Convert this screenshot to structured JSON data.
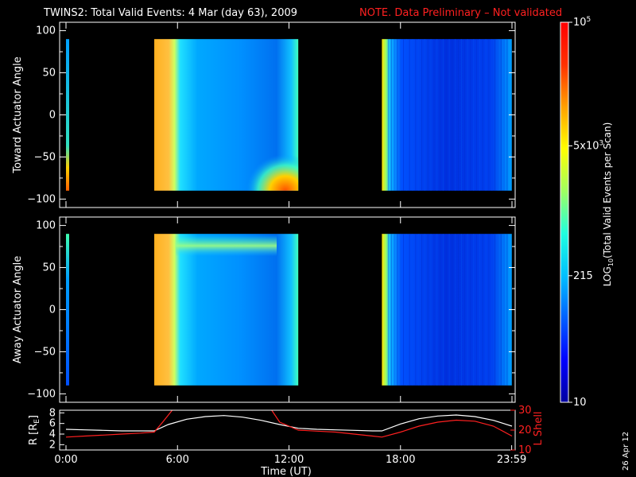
{
  "header": {
    "title": "TWINS2: Total Valid Events:  4 Mar (day  63), 2009",
    "note": "NOTE. Data Preliminary – Not validated",
    "note_color": "#ff2020"
  },
  "footer": {
    "date_stamp": "26 Apr 12"
  },
  "chart_data": [
    {
      "type": "heatmap",
      "id": "toward",
      "ylabel": "Toward Actuator Angle",
      "ylim": [
        -110,
        110
      ],
      "yticks": [
        100,
        50,
        0,
        -50,
        -100
      ],
      "yticklabels": [
        "100",
        "50",
        "0",
        "−50",
        "−100"
      ],
      "xlim_hours": [
        0,
        24
      ],
      "data_blocks": [
        {
          "start_hour": 0.1,
          "end_hour": 0.3,
          "angle_range": [
            -90,
            90
          ],
          "log_level": 0.45
        },
        {
          "start_hour": 4.75,
          "end_hour": 12.5,
          "angle_range": [
            -90,
            90
          ],
          "log_level": 0.55
        },
        {
          "start_hour": 17.0,
          "end_hour": 23.99,
          "angle_range": [
            -90,
            90
          ],
          "log_level": 0.35
        }
      ]
    },
    {
      "type": "heatmap",
      "id": "away",
      "ylabel": "Away Actuator Angle",
      "ylim": [
        -110,
        110
      ],
      "yticks": [
        100,
        50,
        0,
        -50,
        -100
      ],
      "yticklabels": [
        "100",
        "50",
        "0",
        "−50",
        "−100"
      ],
      "xlim_hours": [
        0,
        24
      ],
      "data_blocks": [
        {
          "start_hour": 0.1,
          "end_hour": 0.3,
          "angle_range": [
            -90,
            90
          ],
          "log_level": 0.5
        },
        {
          "start_hour": 4.75,
          "end_hour": 12.5,
          "angle_range": [
            -90,
            90
          ],
          "log_level": 0.5
        },
        {
          "start_hour": 17.0,
          "end_hour": 23.99,
          "angle_range": [
            -90,
            90
          ],
          "log_level": 0.3
        }
      ]
    },
    {
      "type": "line",
      "id": "orbit",
      "ylabel": "R [R",
      "ylabel_sub": "E",
      "ylabel_end": "]",
      "ylim": [
        1,
        8.5
      ],
      "yticks": [
        8,
        6,
        4,
        2
      ],
      "yticklabels": [
        "8",
        "6",
        "4",
        "2"
      ],
      "y2label": "L Shell",
      "y2lim": [
        10,
        30
      ],
      "y2ticks": [
        30,
        20,
        10
      ],
      "y2ticklabels": [
        "30",
        "20",
        "10"
      ],
      "xlabel": "Time (UT)",
      "xticks_hours": [
        0,
        6,
        12,
        18,
        23.983
      ],
      "xticklabels": [
        "0:00",
        "6:00",
        "12:00",
        "18:00",
        "23:59"
      ],
      "series": [
        {
          "color": "#ffffff",
          "axis": "left",
          "x": [
            0,
            1,
            2,
            3,
            4,
            4.75,
            5.5,
            6.5,
            7.5,
            8.5,
            9.5,
            10.5,
            11.5,
            12.5,
            13.5,
            14.5,
            15.5,
            16.5,
            17.0,
            18,
            19,
            20,
            21,
            22,
            23,
            24
          ],
          "y": [
            4.9,
            4.8,
            4.7,
            4.6,
            4.6,
            4.6,
            5.8,
            6.8,
            7.3,
            7.5,
            7.2,
            6.6,
            5.8,
            5.1,
            4.9,
            4.8,
            4.7,
            4.6,
            4.6,
            5.9,
            6.9,
            7.4,
            7.6,
            7.3,
            6.6,
            5.5
          ]
        },
        {
          "color": "#ff2020",
          "axis": "right",
          "x": [
            0,
            1,
            2,
            3,
            4,
            4.75,
            5.2,
            5.8,
            11.0,
            11.5,
            12.5,
            13.5,
            14.5,
            15.5,
            16.5,
            17.0,
            18,
            19,
            20,
            21,
            22,
            23,
            24
          ],
          "y": [
            16.5,
            17,
            17.5,
            18,
            18.5,
            19,
            24,
            31,
            31,
            24,
            20,
            19.5,
            19,
            18,
            17,
            16.5,
            19,
            22,
            24,
            25,
            24.5,
            22,
            17
          ]
        }
      ]
    }
  ],
  "colorbar": {
    "label_prefix": "LOG",
    "label_sub": "10",
    "label_suffix": "(Total Valid  Events per Scan)",
    "ticks": [
      {
        "label_main": "10",
        "label_sup": "5",
        "value": 100000
      },
      {
        "label_main": "5x10",
        "label_sup": "3",
        "value": 5000
      },
      {
        "label_main": "215",
        "label_sup": "",
        "value": 215
      },
      {
        "label_main": "10",
        "label_sup": "",
        "value": 10
      }
    ],
    "colors": [
      "#0000a0",
      "#0000ff",
      "#0060ff",
      "#00c0ff",
      "#20ffe0",
      "#a0ff60",
      "#ffff00",
      "#ffa000",
      "#ff3000",
      "#ff0000"
    ]
  }
}
